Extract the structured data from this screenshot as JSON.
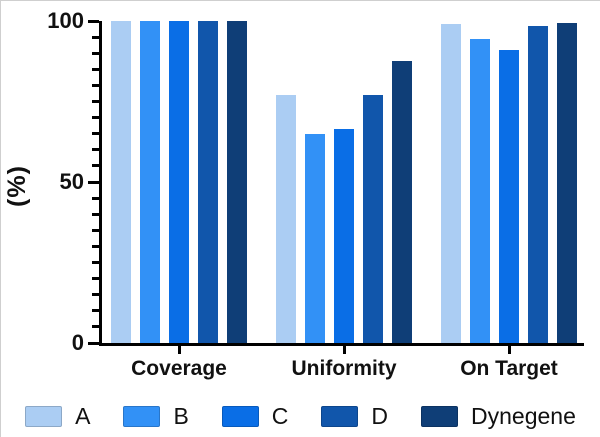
{
  "chart_data": {
    "type": "bar",
    "title": "",
    "xlabel": "",
    "ylabel": "(%)",
    "categories": [
      "Coverage",
      "Uniformity",
      "On Target"
    ],
    "series": [
      {
        "name": "A",
        "color": "#abcdf3",
        "values": [
          100,
          77,
          99
        ]
      },
      {
        "name": "B",
        "color": "#3291f6",
        "values": [
          100,
          65,
          94.5
        ]
      },
      {
        "name": "C",
        "color": "#0a6ee6",
        "values": [
          100,
          66.5,
          91
        ]
      },
      {
        "name": "D",
        "color": "#1156ab",
        "values": [
          100,
          77,
          98.5
        ]
      },
      {
        "name": "Dynegene",
        "color": "#0f3e77",
        "values": [
          100,
          87.5,
          99.5
        ]
      }
    ],
    "ylim": [
      0,
      100
    ],
    "yticks_major": [
      0,
      50,
      100
    ],
    "ytick_minor_step": 5,
    "grid": false,
    "legend_position": "bottom",
    "axis_color": "#000000",
    "text_color": "#111111"
  }
}
